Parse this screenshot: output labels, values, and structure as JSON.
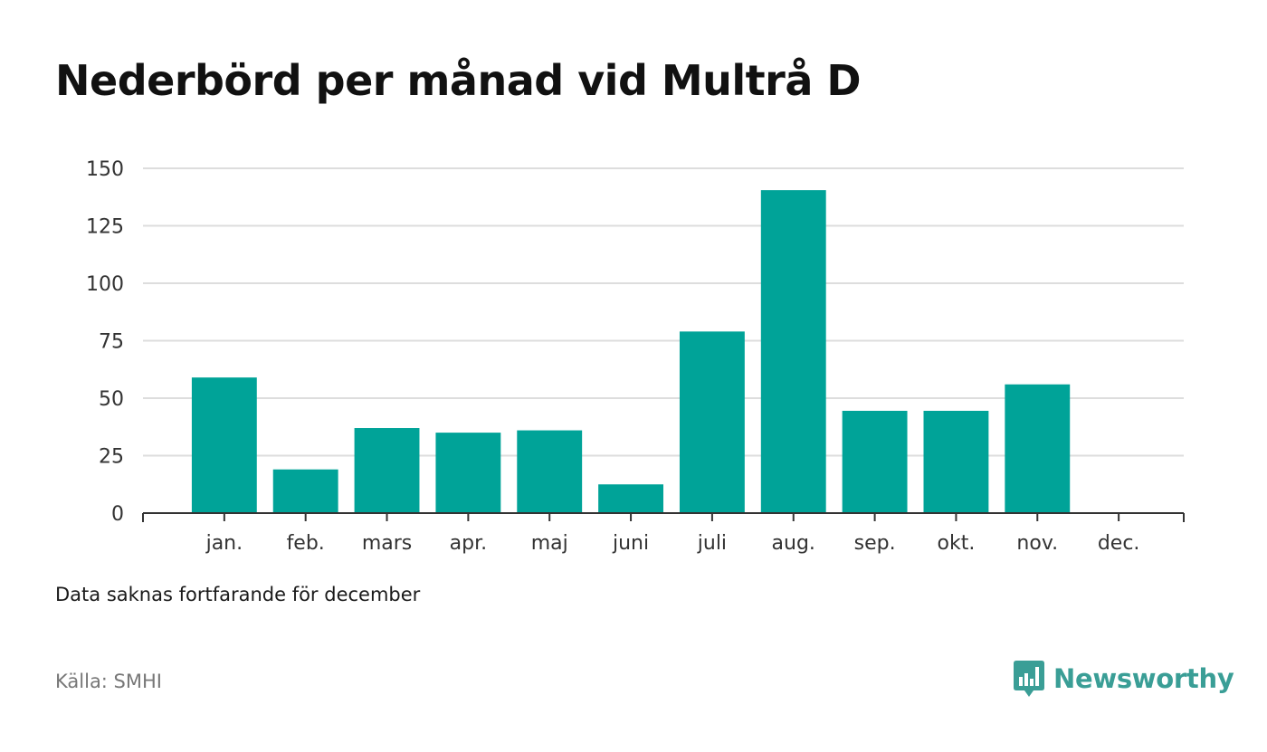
{
  "title": "Nederbörd per månad vid Multrå D",
  "note": "Data saknas fortfarande för december",
  "source": "Källa: SMHI",
  "brand": {
    "name": "Newsworthy",
    "color": "#3a9e96",
    "icon": "newsworthy-logo-icon"
  },
  "colors": {
    "bar": "#00a398",
    "grid": "#dddddd",
    "axis": "#333333",
    "text": "#333333"
  },
  "chart_data": {
    "type": "bar",
    "categories": [
      "jan.",
      "feb.",
      "mars",
      "apr.",
      "maj",
      "juni",
      "juli",
      "aug.",
      "sep.",
      "okt.",
      "nov.",
      "dec."
    ],
    "values": [
      59,
      19,
      37,
      35,
      36,
      12.5,
      79,
      140.5,
      44.5,
      44.5,
      56,
      null
    ],
    "yticks": [
      0,
      25,
      50,
      75,
      100,
      125,
      150
    ],
    "ylim": [
      0,
      150
    ],
    "grid": true,
    "legend": "none"
  }
}
